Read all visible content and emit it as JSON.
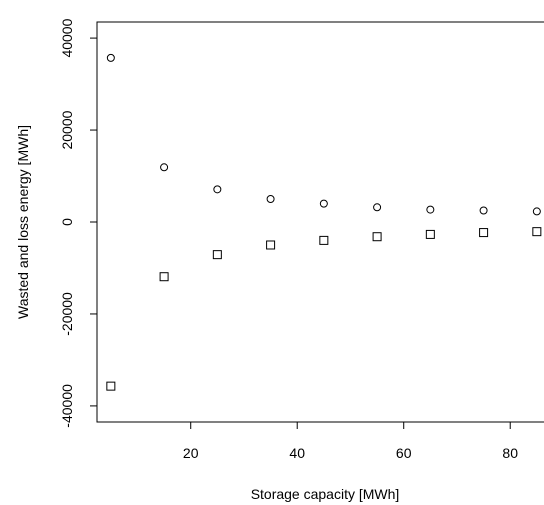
{
  "chart_data": {
    "type": "scatter",
    "xlabel": "Storage capacity [MWh]",
    "ylabel": "Wasted and loss energy [MWh]",
    "x": [
      5,
      15,
      25,
      35,
      45,
      55,
      65,
      75,
      85
    ],
    "series": [
      {
        "marker": "circle",
        "color": "#000000",
        "values": [
          35700,
          11900,
          7100,
          5000,
          4000,
          3200,
          2700,
          2500,
          2300
        ]
      },
      {
        "marker": "square",
        "color": "#000000",
        "values": [
          -35700,
          -11900,
          -7100,
          -5000,
          -4000,
          -3200,
          -2700,
          -2300,
          -2100
        ]
      }
    ],
    "xlim": [
      2.4,
      88.2
    ],
    "xticks": [
      20,
      40,
      60,
      80
    ],
    "ylim": [
      -43500,
      43500
    ],
    "yticks": [
      -40000,
      -20000,
      0,
      20000,
      40000
    ]
  }
}
